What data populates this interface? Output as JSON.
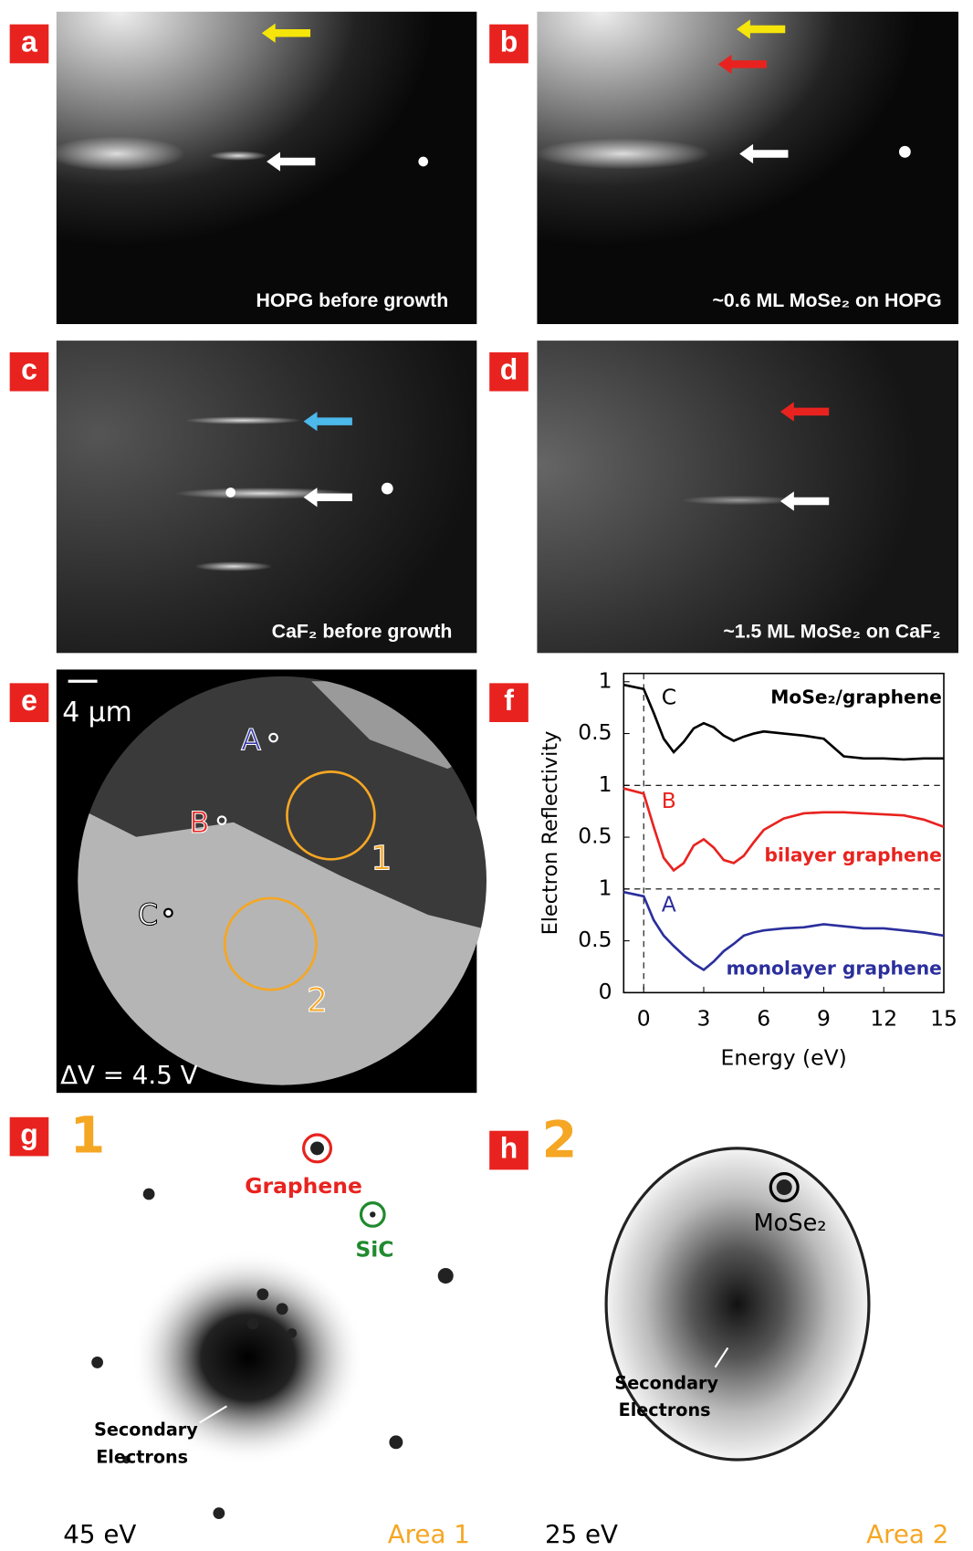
{
  "panels": [
    {
      "label": "a",
      "caption": "HOPG before growth"
    },
    {
      "label": "b",
      "caption": "~0.6 ML MoSe₂ on HOPG"
    },
    {
      "label": "c",
      "caption": "CaF₂ before growth"
    },
    {
      "label": "d",
      "caption": "~1.5 ML MoSe₂ on CaF₂"
    }
  ],
  "panel_e": {
    "label": "e",
    "scale_bar": "4 μm",
    "points": [
      "A",
      "B",
      "C"
    ],
    "areas": [
      "1",
      "2"
    ],
    "bias": "ΔV = 4.5 V"
  },
  "chart_data": {
    "type": "line",
    "panel_label": "f",
    "x_label": "Energy (eV)",
    "y_label": "Electron Reflectivity",
    "x": [
      -1,
      0,
      0.5,
      1,
      1.5,
      2,
      2.5,
      3,
      3.5,
      4,
      4.5,
      5,
      5.5,
      6,
      7,
      8,
      9,
      10,
      11,
      12,
      13,
      14,
      15
    ],
    "series": [
      {
        "name": "MoSe₂/graphene",
        "letter": "C",
        "color": "#000000",
        "values": [
          2.97,
          2.93,
          2.7,
          2.45,
          2.32,
          2.42,
          2.55,
          2.6,
          2.56,
          2.48,
          2.43,
          2.47,
          2.5,
          2.52,
          2.5,
          2.48,
          2.45,
          2.28,
          2.26,
          2.26,
          2.25,
          2.26,
          2.26
        ]
      },
      {
        "name": "bilayer graphene",
        "letter": "B",
        "color": "#e8231f",
        "values": [
          1.97,
          1.92,
          1.6,
          1.3,
          1.18,
          1.25,
          1.42,
          1.48,
          1.4,
          1.28,
          1.25,
          1.32,
          1.45,
          1.57,
          1.68,
          1.73,
          1.74,
          1.74,
          1.73,
          1.72,
          1.71,
          1.67,
          1.6
        ]
      },
      {
        "name": "monolayer graphene",
        "letter": "A",
        "color": "#2b2f9c",
        "values": [
          0.97,
          0.93,
          0.7,
          0.55,
          0.45,
          0.36,
          0.28,
          0.22,
          0.3,
          0.4,
          0.47,
          0.55,
          0.58,
          0.6,
          0.62,
          0.63,
          0.66,
          0.64,
          0.62,
          0.62,
          0.6,
          0.58,
          0.55
        ]
      }
    ],
    "xlim": [
      -1,
      15
    ],
    "ylim": [
      0,
      3.08
    ],
    "xticks": [
      0,
      3,
      6,
      9,
      12,
      15
    ],
    "yticks": [
      0,
      0.5,
      1,
      {
        "value": 1.5,
        "label": "0.5"
      },
      {
        "value": 2,
        "label": "1"
      },
      {
        "value": 2.5,
        "label": "0.5"
      },
      {
        "value": 3,
        "label": "1"
      }
    ],
    "dashed_y": [
      1,
      2
    ],
    "dashed_x": [
      0
    ]
  },
  "panel_g": {
    "label": "g",
    "area_number": "1",
    "spots": [
      "Graphene",
      "SiC"
    ],
    "arrow_label": [
      "Secondary",
      "Electrons"
    ],
    "energy": "45 eV",
    "area": "Area 1"
  },
  "panel_h": {
    "label": "h",
    "area_number": "2",
    "spot": "MoSe₂",
    "arrow_label": [
      "Secondary",
      "Electrons"
    ],
    "energy": "25 eV",
    "area": "Area 2"
  }
}
